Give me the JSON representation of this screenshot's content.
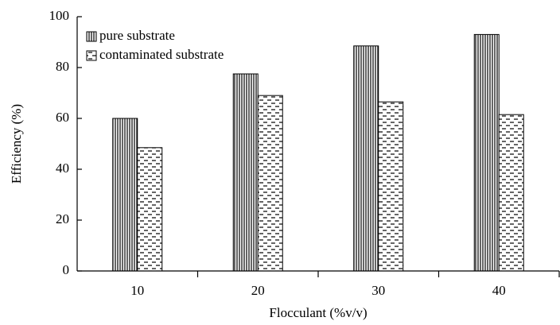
{
  "chart_data": {
    "type": "bar",
    "x_label": "Flocculant (%v/v)",
    "y_label": "Efficiency (%)",
    "categories": [
      "10",
      "20",
      "30",
      "40"
    ],
    "series": [
      {
        "name": "pure substrate",
        "color": "#000000",
        "pattern": "vertical-lines",
        "values": [
          60,
          77.5,
          88.5,
          93
        ]
      },
      {
        "name": "contaminated substrate",
        "color": "#000000",
        "pattern": "horizontal-dashes",
        "values": [
          48.5,
          69,
          66.5,
          61.5
        ]
      }
    ],
    "ylim": [
      0,
      100
    ],
    "yticks": [
      0,
      20,
      40,
      60,
      80,
      100
    ],
    "legend": "top-left",
    "grid": false
  }
}
